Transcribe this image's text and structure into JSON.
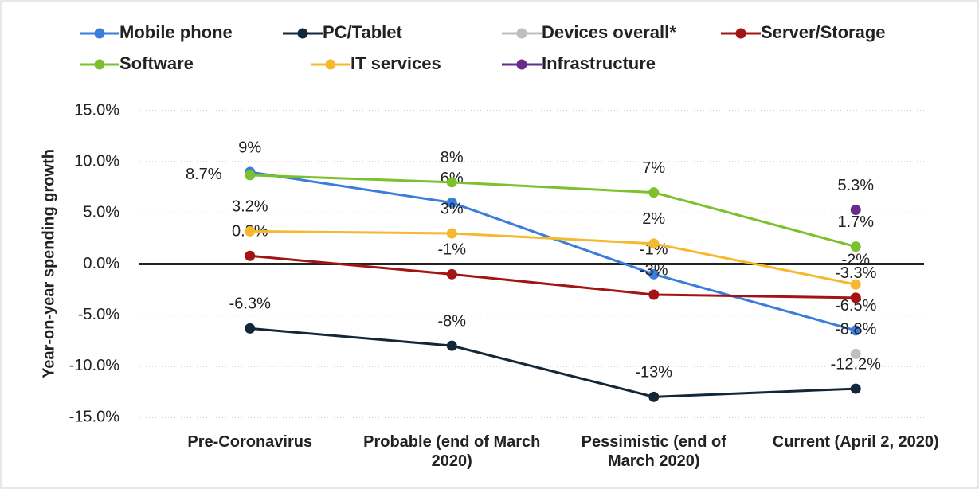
{
  "chart_data": {
    "type": "line",
    "y_label": "Year-on-year spending growth",
    "categories": [
      "Pre-Coronavirus",
      "Probable (end of March 2020)",
      "Pessimistic (end of March 2020)",
      "Current (April 2, 2020)"
    ],
    "series": [
      {
        "name": "Mobile phone",
        "color": "#3a7ddb",
        "values": [
          9,
          6,
          -1,
          -6.5
        ],
        "value_labels": [
          "9%",
          "6%",
          "-1%",
          "-6.5%"
        ]
      },
      {
        "name": "PC/Tablet",
        "color": "#13273b",
        "values": [
          -6.3,
          -8,
          -13,
          -12.2
        ],
        "value_labels": [
          "-6.3%",
          "-8%",
          "-13%",
          "-12.2%"
        ]
      },
      {
        "name": "Devices overall*",
        "color": "#bfbfbf",
        "values": [
          null,
          null,
          null,
          -8.8
        ],
        "value_labels": [
          null,
          null,
          null,
          "-8.8%"
        ]
      },
      {
        "name": "Server/Storage",
        "color": "#a31515",
        "values": [
          0.8,
          -1,
          -3,
          -3.3
        ],
        "value_labels": [
          "0.8%",
          "-1%",
          "-3%",
          "-3.3%"
        ]
      },
      {
        "name": "Software",
        "color": "#7cc02e",
        "values": [
          8.7,
          8,
          7,
          1.7
        ],
        "value_labels": [
          "8.7%",
          "8%",
          "7%",
          "1.7%"
        ]
      },
      {
        "name": "IT services",
        "color": "#f5b82e",
        "values": [
          3.2,
          3,
          2,
          -2
        ],
        "value_labels": [
          "3.2%",
          "3%",
          "2%",
          "-2%"
        ]
      },
      {
        "name": "Infrastructure",
        "color": "#6a2c8a",
        "values": [
          null,
          null,
          null,
          5.3
        ],
        "value_labels": [
          null,
          null,
          null,
          "5.3%"
        ]
      }
    ],
    "ylim": [
      -15,
      15
    ],
    "yticks": [
      {
        "value": -15,
        "label": "-15.0%"
      },
      {
        "value": -10,
        "label": "-10.0%"
      },
      {
        "value": -5,
        "label": "-5.0%"
      },
      {
        "value": 0,
        "label": "0.0%"
      },
      {
        "value": 5,
        "label": "5.0%"
      },
      {
        "value": 10,
        "label": "10.0%"
      },
      {
        "value": 15,
        "label": "15.0%"
      }
    ],
    "grid": true,
    "legend": "top"
  }
}
